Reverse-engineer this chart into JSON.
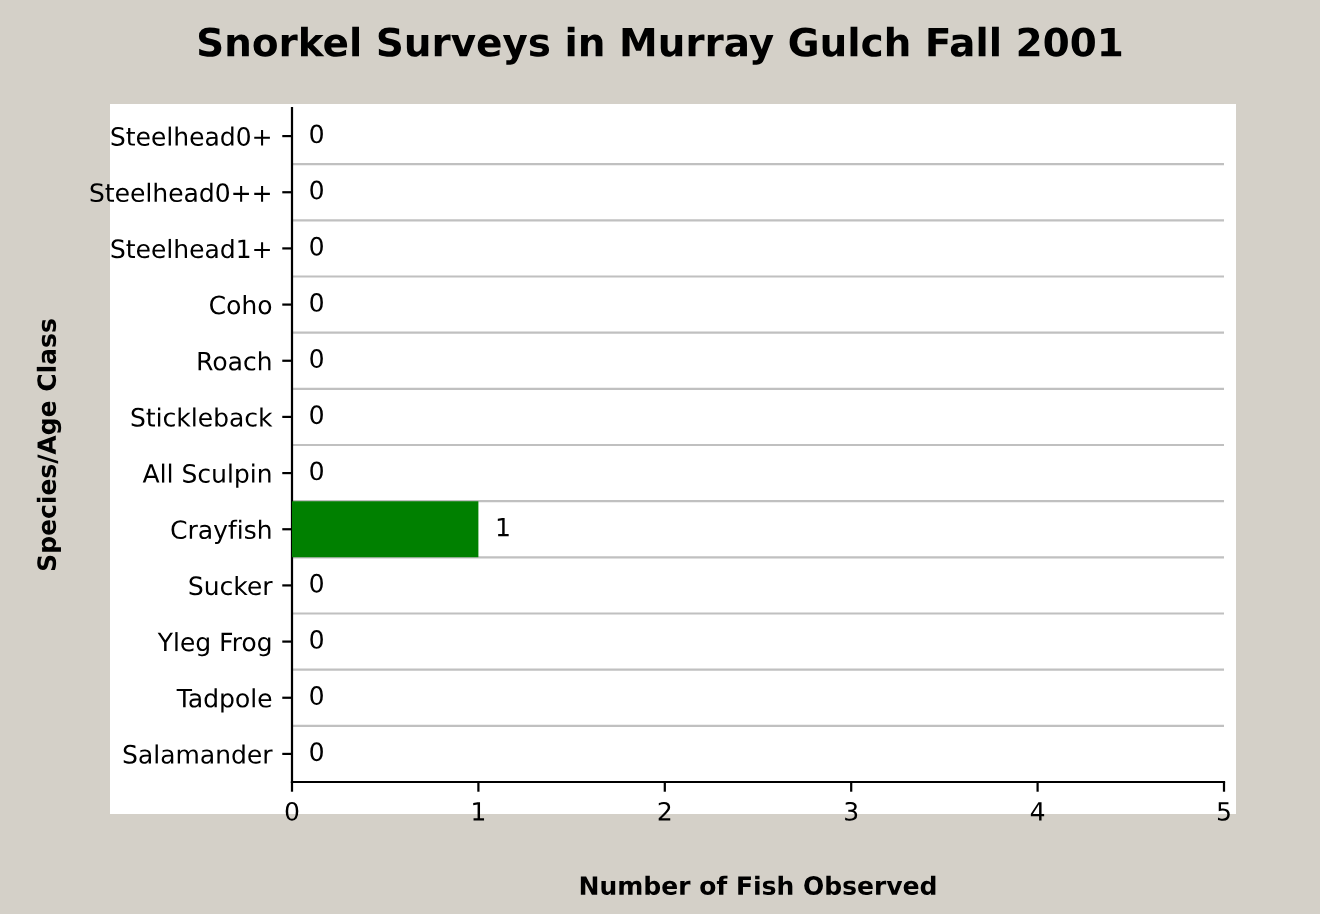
{
  "chart_data": {
    "type": "bar",
    "orientation": "horizontal",
    "title": "Snorkel Surveys in Murray Gulch Fall 2001",
    "xlabel": "Number of Fish Observed",
    "ylabel": "Species/Age Class",
    "categories": [
      "Steelhead0+",
      "Steelhead0++",
      "Steelhead1+",
      "Coho",
      "Roach",
      "Stickleback",
      "All Sculpin",
      "Crayfish",
      "Sucker",
      "Yleg Frog",
      "Tadpole",
      "Salamander"
    ],
    "values": [
      0,
      0,
      0,
      0,
      0,
      0,
      0,
      1,
      0,
      0,
      0,
      0
    ],
    "color": "#008000",
    "xlim": [
      0,
      5
    ],
    "xticks": [
      0,
      1,
      2,
      3,
      4,
      5
    ],
    "grid": "y",
    "data_labels": true
  }
}
